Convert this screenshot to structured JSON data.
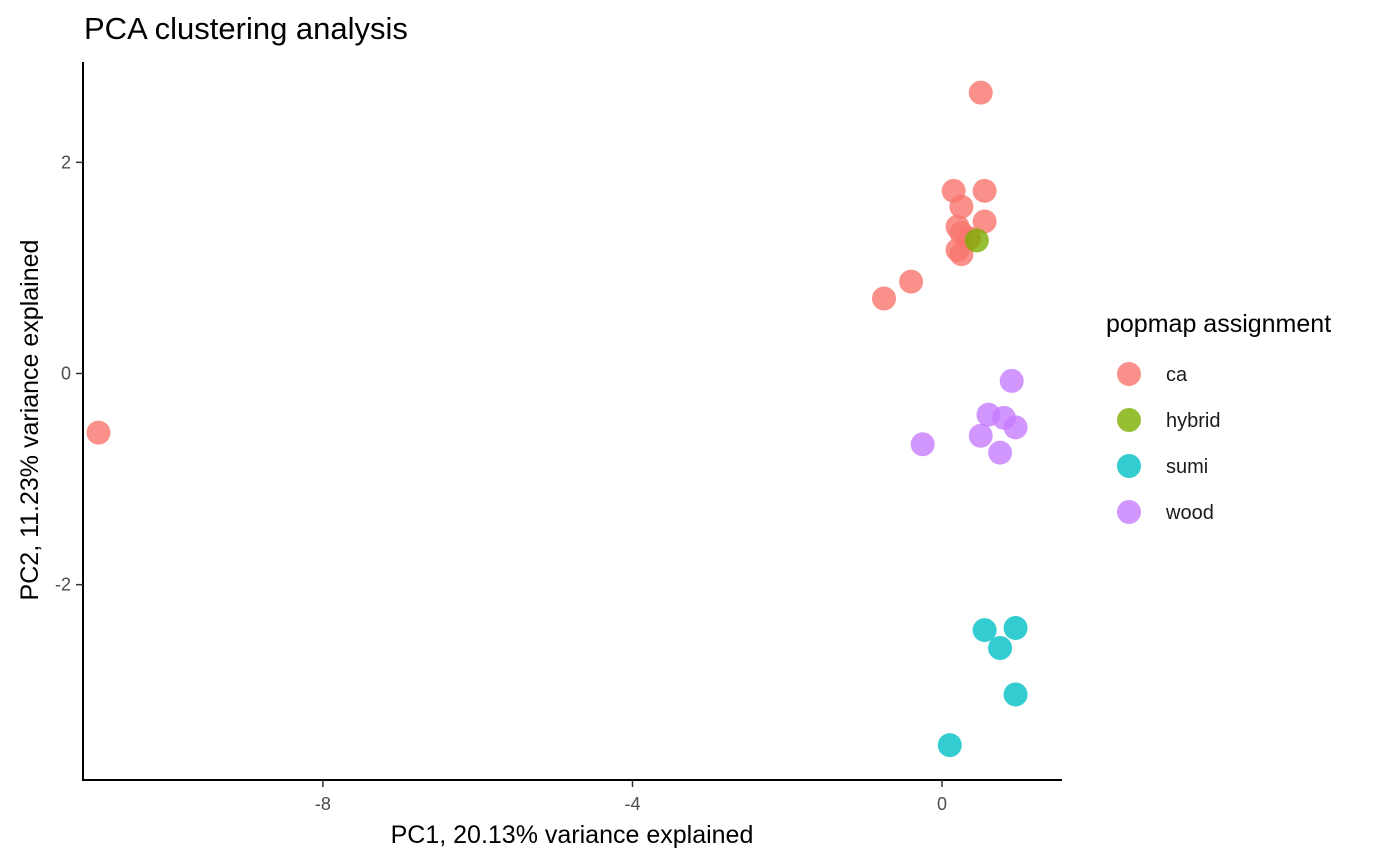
{
  "chart_data": {
    "type": "scatter",
    "title": "PCA clustering analysis",
    "xlabel": "PC1, 20.13% variance explained",
    "ylabel": "PC2, 11.23% variance explained",
    "xlim": [
      -11.1,
      1.55
    ],
    "ylim": [
      -3.85,
      2.95
    ],
    "xticks": [
      -8,
      -4,
      0
    ],
    "yticks": [
      -2,
      0,
      2
    ],
    "tick_labels": {
      "x": [
        "-8",
        "-4",
        "0"
      ],
      "y": [
        "-2",
        "0",
        "2"
      ]
    },
    "grid": false,
    "legend": {
      "title": "popmap assignment",
      "placement": "right"
    },
    "series": [
      {
        "name": "ca",
        "color": "#F8766D",
        "points": [
          {
            "x": -10.9,
            "y": -0.56
          },
          {
            "x": 0.5,
            "y": 2.66
          },
          {
            "x": 0.15,
            "y": 1.73
          },
          {
            "x": 0.55,
            "y": 1.73
          },
          {
            "x": 0.25,
            "y": 1.58
          },
          {
            "x": 0.55,
            "y": 1.44
          },
          {
            "x": 0.2,
            "y": 1.39
          },
          {
            "x": 0.25,
            "y": 1.33
          },
          {
            "x": 0.35,
            "y": 1.28
          },
          {
            "x": 0.2,
            "y": 1.17
          },
          {
            "x": 0.25,
            "y": 1.13
          },
          {
            "x": -0.4,
            "y": 0.87
          },
          {
            "x": -0.75,
            "y": 0.71
          }
        ]
      },
      {
        "name": "hybrid",
        "color": "#7CAE00",
        "points": [
          {
            "x": 0.45,
            "y": 1.26
          }
        ]
      },
      {
        "name": "sumi",
        "color": "#00BFC4",
        "points": [
          {
            "x": 0.95,
            "y": -2.41
          },
          {
            "x": 0.55,
            "y": -2.43
          },
          {
            "x": 0.75,
            "y": -2.6
          },
          {
            "x": 0.95,
            "y": -3.04
          },
          {
            "x": 0.1,
            "y": -3.52
          }
        ]
      },
      {
        "name": "wood",
        "color": "#C77CFF",
        "points": [
          {
            "x": 0.9,
            "y": -0.07
          },
          {
            "x": 0.6,
            "y": -0.39
          },
          {
            "x": 0.8,
            "y": -0.42
          },
          {
            "x": 0.95,
            "y": -0.51
          },
          {
            "x": 0.5,
            "y": -0.59
          },
          {
            "x": -0.25,
            "y": -0.67
          },
          {
            "x": 0.75,
            "y": -0.75
          }
        ]
      }
    ]
  }
}
